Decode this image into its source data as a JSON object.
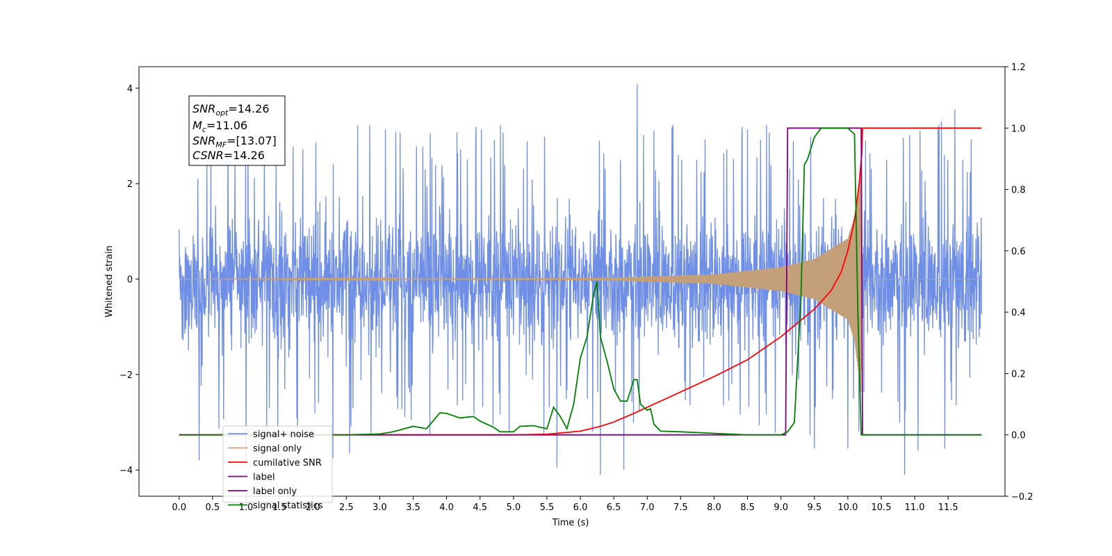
{
  "chart_data": {
    "type": "line",
    "xlabel": "Time (s)",
    "ylabel": "Whitened strain",
    "xlim": [
      -0.6,
      12.35
    ],
    "ylim": [
      -4.55,
      4.45
    ],
    "y2lim": [
      -0.2,
      1.2
    ],
    "x_ticks": [
      "0.0",
      "0.5",
      "1.0",
      "1.5",
      "2.0",
      "2.5",
      "3.0",
      "3.5",
      "4.0",
      "4.5",
      "5.0",
      "5.5",
      "6.0",
      "6.5",
      "7.0",
      "7.5",
      "8.0",
      "8.5",
      "9.0",
      "9.5",
      "10.0",
      "10.5",
      "11.0",
      "11.5"
    ],
    "y_ticks": [
      "4",
      "2",
      "0",
      "−2",
      "−4"
    ],
    "y2_ticks": [
      "1.2",
      "1.0",
      "0.8",
      "0.6",
      "0.4",
      "0.2",
      "0.0",
      "−0.2"
    ],
    "grid": false,
    "legend_position": "lower-left",
    "annotation": {
      "snr_opt": {
        "main": "SNR",
        "sub": "opt",
        "value": "=14.26"
      },
      "mc": {
        "main": "M",
        "sub": "c",
        "value": "=11.06"
      },
      "snr_mf": {
        "main": "SNR",
        "sub": "MF",
        "value": "=[13.07]"
      },
      "csnr": {
        "main": "CSNR",
        "sub": "",
        "value": "=14.26"
      }
    },
    "series": [
      {
        "name": "signal+ noise",
        "axis": "left",
        "color": "#6f8ee6",
        "kind": "noise",
        "x_range": [
          0.0,
          12.0
        ],
        "spread_typical": 2.2,
        "extremes": [
          {
            "x": 6.85,
            "y": 4.08
          },
          {
            "x": 11.6,
            "y": 3.55
          },
          {
            "x": 11.4,
            "y": 3.3
          },
          {
            "x": 0.3,
            "y": -3.8
          },
          {
            "x": 1.0,
            "y": -3.8
          },
          {
            "x": 2.3,
            "y": -3.75
          },
          {
            "x": 2.55,
            "y": -3.65
          },
          {
            "x": 5.65,
            "y": -3.95
          },
          {
            "x": 6.3,
            "y": -4.1
          },
          {
            "x": 6.65,
            "y": -4.0
          },
          {
            "x": 9.5,
            "y": -3.55
          },
          {
            "x": 10.0,
            "y": -3.55
          },
          {
            "x": 10.85,
            "y": -4.1
          },
          {
            "x": 11.05,
            "y": -3.6
          },
          {
            "x": 11.45,
            "y": -3.55
          }
        ]
      },
      {
        "name": "signal only",
        "axis": "left",
        "color": "#c4a07a",
        "kind": "chirp",
        "x": [
          0.0,
          6.0,
          7.0,
          8.0,
          9.0,
          9.5,
          10.0,
          10.1,
          10.2,
          10.22,
          12.0
        ],
        "envelope": [
          0.0,
          0.02,
          0.05,
          0.1,
          0.25,
          0.42,
          0.85,
          1.3,
          2.4,
          0.0,
          0.0
        ]
      },
      {
        "name": "cumilative SNR",
        "axis": "right",
        "color": "#ff0000",
        "x": [
          0.0,
          5.0,
          5.5,
          6.0,
          6.3,
          6.5,
          6.8,
          7.0,
          7.5,
          8.0,
          8.5,
          9.0,
          9.5,
          9.75,
          9.9,
          10.0,
          10.1,
          10.17,
          10.21,
          10.22,
          12.0
        ],
        "values": [
          0.0,
          0.0,
          0.002,
          0.012,
          0.028,
          0.042,
          0.07,
          0.09,
          0.14,
          0.19,
          0.245,
          0.32,
          0.41,
          0.47,
          0.53,
          0.6,
          0.7,
          0.82,
          0.92,
          1.0,
          1.0
        ]
      },
      {
        "name": "label",
        "axis": "right",
        "color": "#800080",
        "x": [
          0.0,
          9.07,
          9.1,
          10.2,
          10.22,
          12.0
        ],
        "values": [
          0.0,
          0.0,
          1.0,
          1.0,
          0.0,
          0.0
        ]
      },
      {
        "name": "label only",
        "axis": "right",
        "color": "#bbbbbb",
        "legend_only": true
      },
      {
        "name": "signal statistics",
        "axis": "right",
        "color": "#008000",
        "x": [
          0.0,
          2.5,
          3.0,
          3.2,
          3.5,
          3.7,
          3.9,
          4.0,
          4.2,
          4.4,
          4.5,
          4.7,
          4.8,
          5.0,
          5.1,
          5.3,
          5.5,
          5.6,
          5.7,
          5.8,
          5.9,
          6.0,
          6.1,
          6.2,
          6.25,
          6.3,
          6.4,
          6.5,
          6.6,
          6.7,
          6.8,
          6.85,
          6.9,
          7.0,
          7.05,
          7.1,
          7.2,
          7.5,
          8.0,
          8.5,
          9.0,
          9.1,
          9.2,
          9.3,
          9.35,
          9.4,
          9.5,
          9.6,
          9.7,
          9.8,
          9.9,
          10.0,
          10.1,
          10.15,
          10.2,
          10.25,
          10.3,
          11.0,
          12.0
        ],
        "values": [
          0.0,
          0.0,
          0.003,
          0.01,
          0.028,
          0.02,
          0.072,
          0.07,
          0.055,
          0.06,
          0.045,
          0.025,
          0.01,
          0.01,
          0.028,
          0.03,
          0.02,
          0.09,
          0.06,
          0.02,
          0.1,
          0.25,
          0.32,
          0.46,
          0.5,
          0.32,
          0.24,
          0.15,
          0.11,
          0.11,
          0.18,
          0.18,
          0.1,
          0.08,
          0.085,
          0.035,
          0.012,
          0.01,
          0.005,
          0.0,
          0.0,
          0.01,
          0.04,
          0.45,
          0.88,
          0.9,
          0.97,
          1.0,
          1.0,
          1.0,
          1.0,
          1.0,
          0.98,
          0.4,
          0.0,
          0.0,
          0.0,
          0.0,
          0.0
        ]
      }
    ]
  }
}
